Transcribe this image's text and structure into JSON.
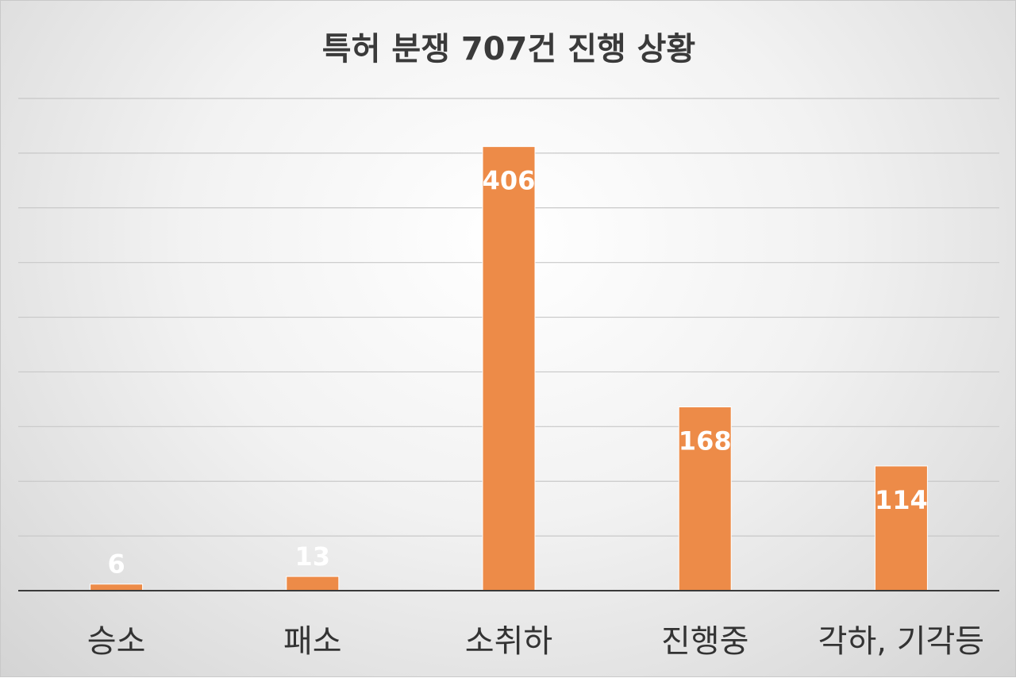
{
  "chart_data": {
    "type": "bar",
    "title": "특허 분쟁 707건 진행 상황",
    "categories": [
      "승소",
      "패소",
      "소취하",
      "진행중",
      "각하, 기각등"
    ],
    "values": [
      6,
      13,
      406,
      168,
      114
    ],
    "xlabel": "",
    "ylabel": "",
    "ylim": [
      0,
      450
    ],
    "grid": true,
    "legend": "none",
    "bar_color": "#ed8b48",
    "label_color": "#ffffff"
  }
}
